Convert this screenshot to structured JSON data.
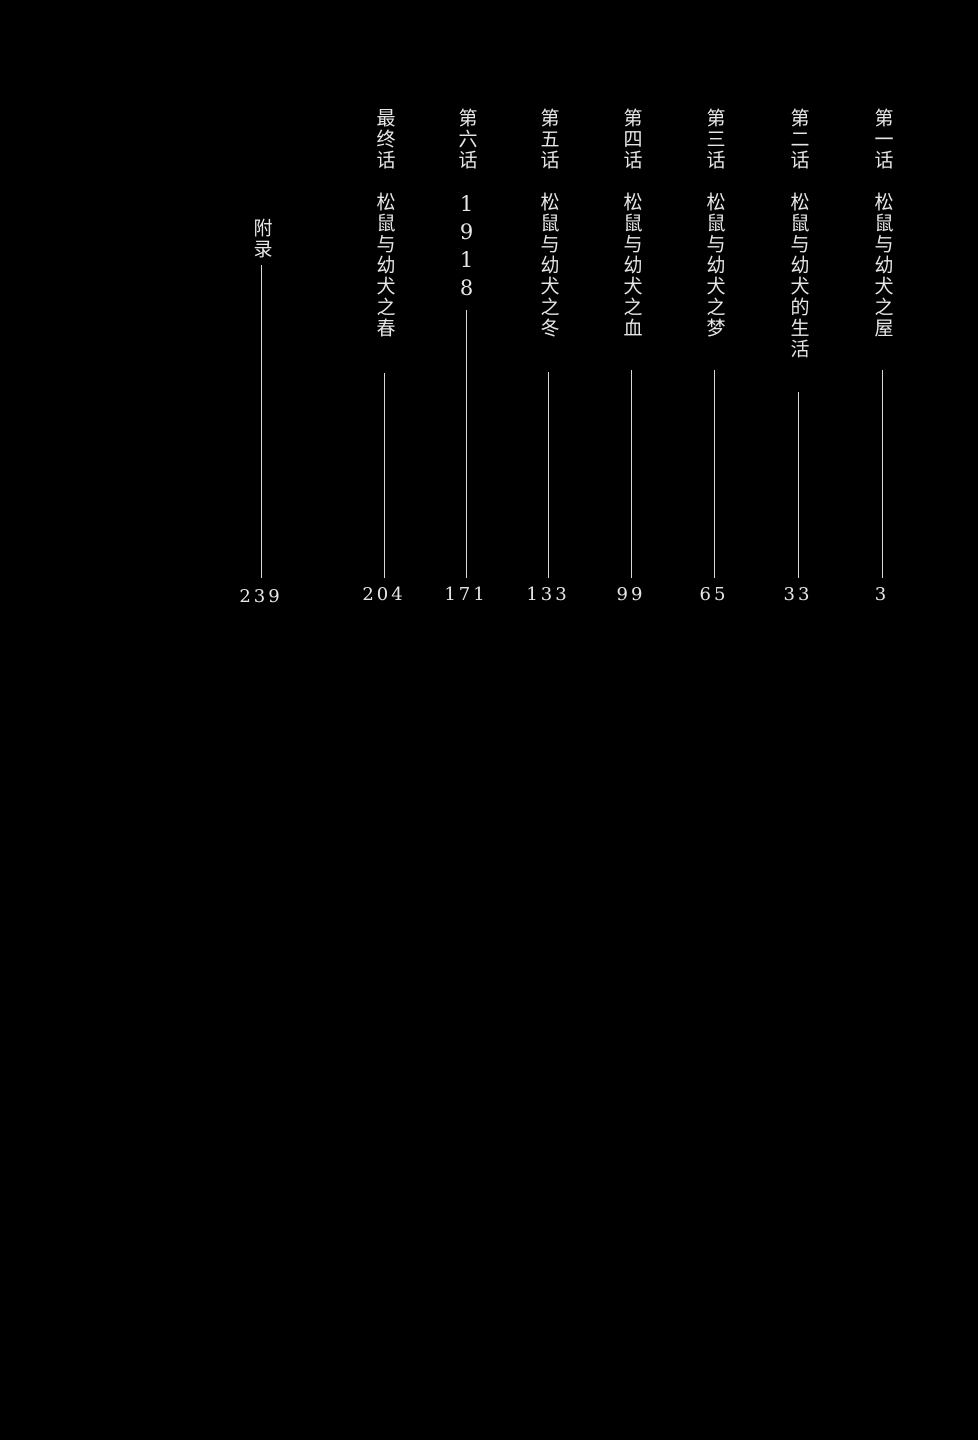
{
  "toc": {
    "entries": [
      {
        "chapter": "第一话",
        "title": "松鼠与幼犬之屋",
        "page": "3"
      },
      {
        "chapter": "第二话",
        "title": "松鼠与幼犬的生活",
        "page": "33"
      },
      {
        "chapter": "第三话",
        "title": "松鼠与幼犬之梦",
        "page": "65"
      },
      {
        "chapter": "第四话",
        "title": "松鼠与幼犬之血",
        "page": "99"
      },
      {
        "chapter": "第五话",
        "title": "松鼠与幼犬之冬",
        "page": "133"
      },
      {
        "chapter": "第六话",
        "title": "1918",
        "page": "171"
      },
      {
        "chapter": "最终话",
        "title": "松鼠与幼犬之春",
        "page": "204"
      },
      {
        "chapter": "附录",
        "title": "",
        "page": "239"
      }
    ]
  }
}
